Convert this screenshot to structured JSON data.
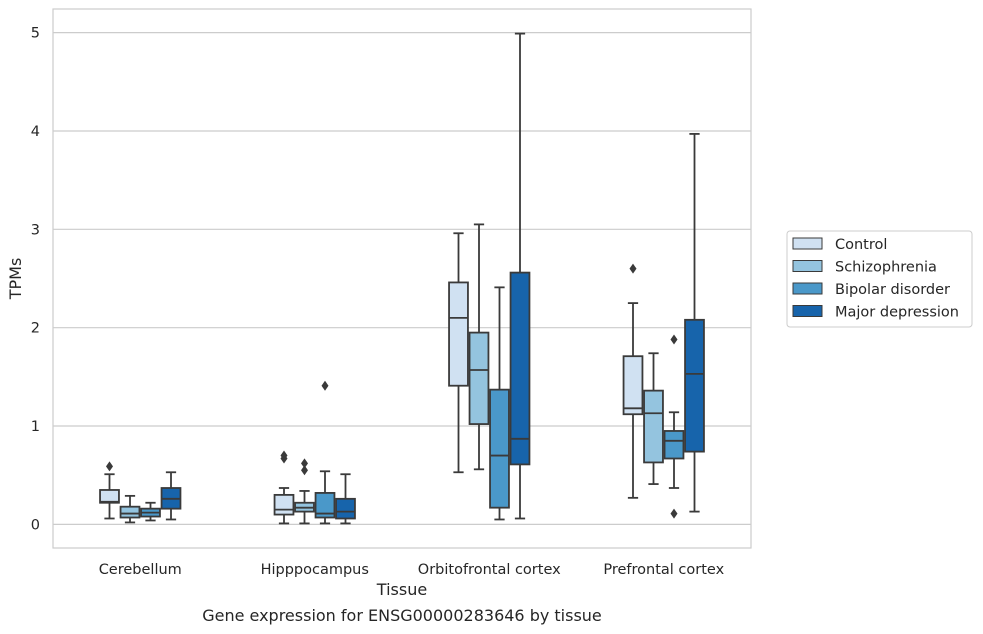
{
  "caption": "Gene expression for ENSG00000283646 by tissue",
  "chart_data": {
    "type": "box",
    "xlabel": "Tissue",
    "ylabel": "TPMs",
    "ylim": [
      -0.24,
      5.24
    ],
    "yticks": [
      0,
      1,
      2,
      3,
      4,
      5
    ],
    "grid": "horizontal",
    "legend_position": "right",
    "categories": [
      "Cerebellum",
      "Hipppocampus",
      "Orbitofrontal cortex",
      "Prefrontal cortex"
    ],
    "series": [
      {
        "name": "Control",
        "color": "#d0e1f2",
        "boxes": [
          {
            "whislo": 0.06,
            "q1": 0.22,
            "med": 0.23,
            "q3": 0.35,
            "whishi": 0.51,
            "fliers": [
              0.59
            ]
          },
          {
            "whislo": 0.01,
            "q1": 0.1,
            "med": 0.15,
            "q3": 0.3,
            "whishi": 0.37,
            "fliers": [
              0.67,
              0.7
            ]
          },
          {
            "whislo": 0.53,
            "q1": 1.41,
            "med": 2.1,
            "q3": 2.46,
            "whishi": 2.96,
            "fliers": []
          },
          {
            "whislo": 0.27,
            "q1": 1.12,
            "med": 1.18,
            "q3": 1.71,
            "whishi": 2.25,
            "fliers": [
              2.6
            ]
          }
        ]
      },
      {
        "name": "Schizophrenia",
        "color": "#94c4df",
        "boxes": [
          {
            "whislo": 0.02,
            "q1": 0.07,
            "med": 0.11,
            "q3": 0.18,
            "whishi": 0.29,
            "fliers": []
          },
          {
            "whislo": 0.01,
            "q1": 0.13,
            "med": 0.17,
            "q3": 0.22,
            "whishi": 0.34,
            "fliers": [
              0.55,
              0.62
            ]
          },
          {
            "whislo": 0.56,
            "q1": 1.02,
            "med": 1.57,
            "q3": 1.95,
            "whishi": 3.05,
            "fliers": []
          },
          {
            "whislo": 0.41,
            "q1": 0.63,
            "med": 1.13,
            "q3": 1.36,
            "whishi": 1.74,
            "fliers": []
          }
        ]
      },
      {
        "name": "Bipolar disorder",
        "color": "#4a98c9",
        "boxes": [
          {
            "whislo": 0.04,
            "q1": 0.08,
            "med": 0.12,
            "q3": 0.16,
            "whishi": 0.22,
            "fliers": []
          },
          {
            "whislo": 0.01,
            "q1": 0.07,
            "med": 0.11,
            "q3": 0.32,
            "whishi": 0.54,
            "fliers": [
              1.41
            ]
          },
          {
            "whislo": 0.05,
            "q1": 0.17,
            "med": 0.7,
            "q3": 1.37,
            "whishi": 2.41,
            "fliers": []
          },
          {
            "whislo": 0.37,
            "q1": 0.67,
            "med": 0.85,
            "q3": 0.95,
            "whishi": 1.14,
            "fliers": [
              0.11,
              1.88
            ]
          }
        ]
      },
      {
        "name": "Major depression",
        "color": "#1764ab",
        "boxes": [
          {
            "whislo": 0.05,
            "q1": 0.16,
            "med": 0.26,
            "q3": 0.37,
            "whishi": 0.53,
            "fliers": []
          },
          {
            "whislo": 0.01,
            "q1": 0.06,
            "med": 0.13,
            "q3": 0.26,
            "whishi": 0.51,
            "fliers": []
          },
          {
            "whislo": 0.06,
            "q1": 0.61,
            "med": 0.87,
            "q3": 2.56,
            "whishi": 4.99,
            "fliers": []
          },
          {
            "whislo": 0.13,
            "q1": 0.74,
            "med": 1.53,
            "q3": 2.08,
            "whishi": 3.97,
            "fliers": []
          }
        ]
      }
    ]
  }
}
